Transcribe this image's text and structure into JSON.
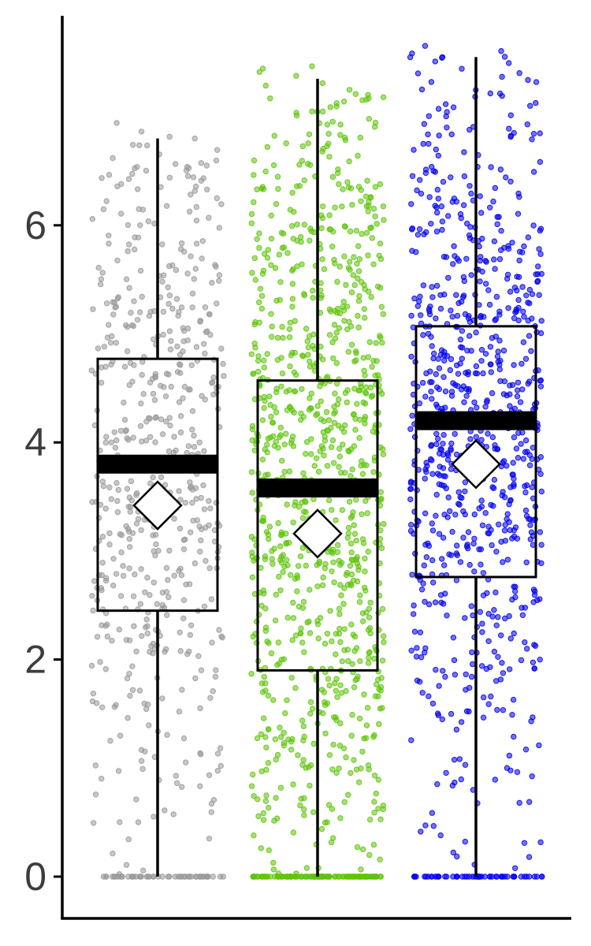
{
  "chart_data": {
    "type": "box",
    "title": "",
    "xlabel": "",
    "ylabel": "",
    "ylim": [
      -0.35,
      7.95
    ],
    "yticks": [
      0,
      2,
      4,
      6
    ],
    "ytick_labels": [
      "0",
      "2",
      "4",
      "6"
    ],
    "grid": false,
    "legend": "none",
    "series": [
      {
        "color": "#999999",
        "whisker_low": 0.0,
        "q1": 2.45,
        "median": 3.8,
        "q3": 4.77,
        "whisker_high": 6.8,
        "mean": 3.42,
        "n_points": 600,
        "n_zeros": 50
      },
      {
        "color": "#5ec40a",
        "whisker_low": 0.0,
        "q1": 1.9,
        "median": 3.58,
        "q3": 4.57,
        "whisker_high": 7.35,
        "mean": 3.16,
        "n_points": 1100,
        "n_zeros": 120
      },
      {
        "color": "#0000ee",
        "whisker_low": 0.0,
        "q1": 2.76,
        "median": 4.2,
        "q3": 5.07,
        "whisker_high": 7.55,
        "mean": 3.8,
        "n_points": 850,
        "n_zeros": 55
      }
    ]
  }
}
